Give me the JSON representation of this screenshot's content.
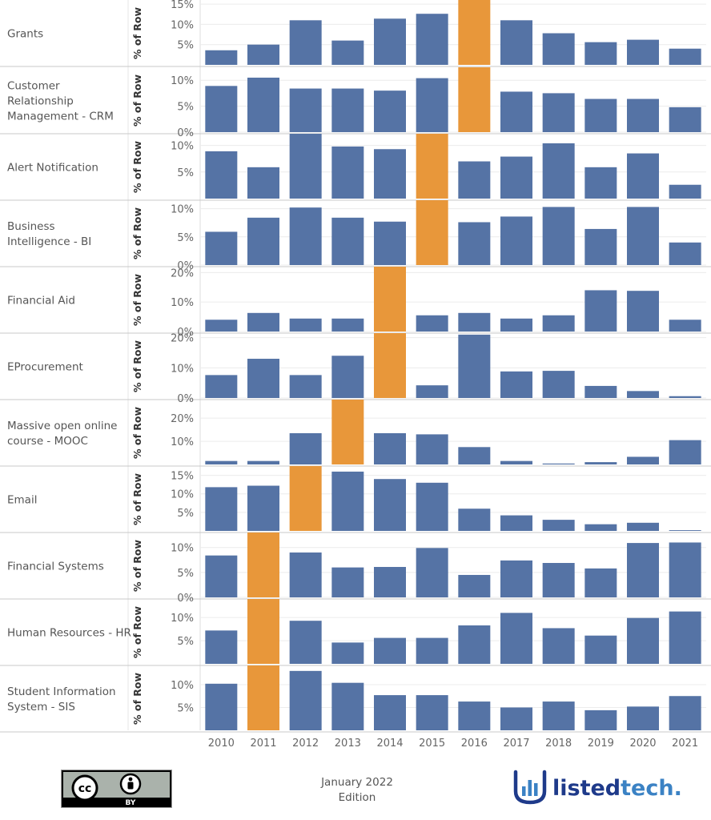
{
  "chart_data": {
    "type": "bar",
    "y_axis_label": "% of Row",
    "categories": [
      "2010",
      "2011",
      "2012",
      "2013",
      "2014",
      "2015",
      "2016",
      "2017",
      "2018",
      "2019",
      "2020",
      "2021"
    ],
    "colors": {
      "default": "#5573a5",
      "highlight": "#e8973a"
    },
    "panels": [
      {
        "name": "Grants",
        "ylim": [
          0,
          16
        ],
        "ticks": [
          5,
          10,
          15
        ],
        "highlight_index": 6,
        "values": [
          3.6,
          5.0,
          11.0,
          6.0,
          11.4,
          12.6,
          16.0,
          11.0,
          7.8,
          5.6,
          6.2,
          4.0
        ]
      },
      {
        "name": "Customer Relationship Management - CRM",
        "ylim": [
          0,
          12.5
        ],
        "ticks": [
          0,
          5,
          10
        ],
        "highlight_index": 6,
        "values": [
          8.9,
          10.5,
          8.4,
          8.4,
          8.0,
          10.4,
          12.5,
          7.8,
          7.5,
          6.4,
          6.4,
          4.8
        ]
      },
      {
        "name": "Alert Notification",
        "ylim": [
          0,
          12.2
        ],
        "ticks": [
          5,
          10
        ],
        "highlight_index": 5,
        "values": [
          8.9,
          5.9,
          12.2,
          9.8,
          9.3,
          12.2,
          7.0,
          7.9,
          10.4,
          5.9,
          8.5,
          2.6
        ]
      },
      {
        "name": "Business Intelligence - BI",
        "ylim": [
          0,
          11.5
        ],
        "ticks": [
          0,
          5,
          10
        ],
        "highlight_index": 5,
        "values": [
          5.9,
          8.4,
          10.2,
          8.4,
          7.7,
          11.5,
          7.6,
          8.6,
          10.3,
          6.4,
          10.3,
          4.0
        ]
      },
      {
        "name": "Financial Aid",
        "ylim": [
          0,
          22
        ],
        "ticks": [
          0,
          10,
          20
        ],
        "highlight_index": 4,
        "values": [
          4.0,
          6.3,
          4.4,
          4.4,
          22.0,
          5.5,
          6.3,
          4.4,
          5.5,
          14.0,
          13.8,
          4.0
        ]
      },
      {
        "name": "EProcurement",
        "ylim": [
          0,
          21.5
        ],
        "ticks": [
          0,
          10,
          20
        ],
        "highlight_index": 4,
        "values": [
          7.6,
          13.0,
          7.6,
          14.0,
          21.5,
          4.2,
          21.0,
          8.8,
          9.0,
          4.0,
          2.3,
          0.6
        ]
      },
      {
        "name": "Massive open online course - MOOC",
        "ylim": [
          0,
          28
        ],
        "ticks": [
          10,
          20
        ],
        "highlight_index": 3,
        "values": [
          1.5,
          1.5,
          13.5,
          28.0,
          13.5,
          13.0,
          7.5,
          1.5,
          0.4,
          1.0,
          3.3,
          10.5
        ]
      },
      {
        "name": "Email",
        "ylim": [
          0,
          17.5
        ],
        "ticks": [
          5,
          10,
          15
        ],
        "highlight_index": 2,
        "values": [
          11.8,
          12.2,
          17.5,
          16.0,
          14.0,
          13.0,
          6.0,
          4.2,
          3.0,
          1.8,
          2.2,
          0.2
        ]
      },
      {
        "name": "Financial Systems",
        "ylim": [
          0,
          13
        ],
        "ticks": [
          0,
          5,
          10
        ],
        "highlight_index": 1,
        "values": [
          8.4,
          13.0,
          9.0,
          6.0,
          6.1,
          9.9,
          4.5,
          7.4,
          6.9,
          5.8,
          10.9,
          11.0
        ]
      },
      {
        "name": "Human Resources - HR",
        "ylim": [
          0,
          14
        ],
        "ticks": [
          5,
          10
        ],
        "highlight_index": 1,
        "values": [
          7.2,
          14.0,
          9.3,
          4.6,
          5.6,
          5.6,
          8.3,
          11.0,
          7.7,
          6.1,
          9.9,
          11.3
        ]
      },
      {
        "name": "Student Information System - SIS",
        "ylim": [
          0,
          14.2
        ],
        "ticks": [
          5,
          10
        ],
        "highlight_index": 1,
        "values": [
          10.2,
          14.2,
          13.0,
          10.4,
          7.7,
          7.7,
          6.3,
          5.0,
          6.3,
          4.4,
          5.2,
          7.5
        ]
      }
    ]
  },
  "footer": {
    "edition_line1": "January 2022",
    "edition_line2": "Edition",
    "license_label": "BY",
    "license_cc": "cc",
    "logo_part1": "listed",
    "logo_part2": "tech",
    "logo_period": "."
  }
}
